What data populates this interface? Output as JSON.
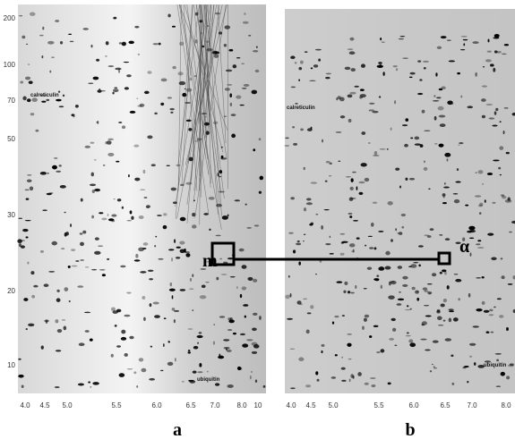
{
  "panels": [
    {
      "label": "a",
      "x_ticks": [
        "4.0",
        "4.5",
        "5.0",
        "5.5",
        "6.0",
        "6.5",
        "7.0",
        "8.0",
        "10"
      ],
      "y_ticks": [
        "200",
        "100",
        "70",
        "50",
        "30",
        "20",
        "10"
      ],
      "annotations": [
        "calreticulin",
        "ubiquitin"
      ]
    },
    {
      "label": "b",
      "x_ticks": [
        "4.0",
        "4.5",
        "5.0",
        "5.5",
        "6.0",
        "6.5",
        "7.0",
        "8.0"
      ],
      "annotations": [
        "calreticulin",
        "ubiquitin"
      ]
    }
  ],
  "markers": {
    "left": "m",
    "right": "α"
  }
}
